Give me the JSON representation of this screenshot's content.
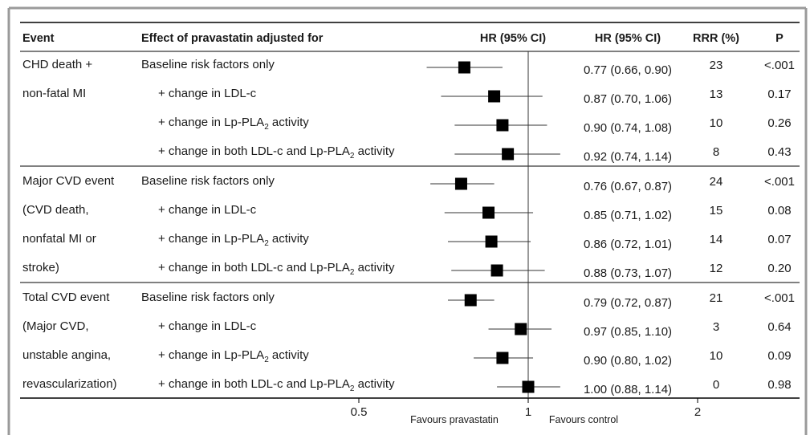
{
  "headers": {
    "event": "Event",
    "effect": "Effect of pravastatin adjusted for",
    "plot": "HR (95% CI)",
    "hr": "HR (95% CI)",
    "rrr": "RRR (%)",
    "p": "P"
  },
  "groups": [
    {
      "event_lines": [
        "CHD death +",
        "non-fatal MI"
      ],
      "rows": [
        {
          "label": "Baseline risk factors only",
          "indent": false,
          "hr_text": "0.77 (0.66, 0.90)",
          "rrr": "23",
          "p": "<.001"
        },
        {
          "label": "+ change in LDL-c",
          "indent": true,
          "hr_text": "0.87 (0.70, 1.06)",
          "rrr": "13",
          "p": "0.17"
        },
        {
          "label": "+ change in Lp-PLA",
          "sub": "2",
          "label_after": " activity",
          "indent": true,
          "hr_text": "0.90 (0.74, 1.08)",
          "rrr": "10",
          "p": "0.26"
        },
        {
          "label": "+ change in both LDL-c and Lp-PLA",
          "sub": "2",
          "label_after": " activity",
          "indent": true,
          "hr_text": "0.92 (0.74, 1.14)",
          "rrr": "8",
          "p": "0.43"
        }
      ]
    },
    {
      "event_lines": [
        "Major CVD event",
        "(CVD death,",
        "nonfatal MI or",
        "stroke)"
      ],
      "rows": [
        {
          "label": "Baseline risk factors only",
          "indent": false,
          "hr_text": "0.76 (0.67, 0.87)",
          "rrr": "24",
          "p": "<.001"
        },
        {
          "label": "+ change in LDL-c",
          "indent": true,
          "hr_text": "0.85 (0.71, 1.02)",
          "rrr": "15",
          "p": "0.08"
        },
        {
          "label": "+ change in Lp-PLA",
          "sub": "2",
          "label_after": " activity",
          "indent": true,
          "hr_text": "0.86 (0.72, 1.01)",
          "rrr": "14",
          "p": "0.07"
        },
        {
          "label": "+ change in both LDL-c and Lp-PLA",
          "sub": "2",
          "label_after": " activity",
          "indent": true,
          "hr_text": "0.88 (0.73, 1.07)",
          "rrr": "12",
          "p": "0.20"
        }
      ]
    },
    {
      "event_lines": [
        "Total CVD event",
        "(Major CVD,",
        "unstable angina,",
        "revascularization)"
      ],
      "rows": [
        {
          "label": "Baseline risk factors only",
          "indent": false,
          "hr_text": "0.79 (0.72, 0.87)",
          "rrr": "21",
          "p": "<.001"
        },
        {
          "label": "+ change in LDL-c",
          "indent": true,
          "hr_text": "0.97 (0.85, 1.10)",
          "rrr": "3",
          "p": "0.64"
        },
        {
          "label": "+ change in Lp-PLA",
          "sub": "2",
          "label_after": " activity",
          "indent": true,
          "hr_text": "0.90 (0.80, 1.02)",
          "rrr": "10",
          "p": "0.09"
        },
        {
          "label": "+ change in both LDL-c and Lp-PLA",
          "sub": "2",
          "label_after": " activity",
          "indent": true,
          "hr_text": "1.00 (0.88, 1.14)",
          "rrr": "0",
          "p": "0.98"
        }
      ]
    }
  ],
  "chart_data": {
    "type": "scatter",
    "subtype": "forest-plot",
    "xscale": "log",
    "xlim": [
      0.5,
      2
    ],
    "xticks": [
      "0.5",
      "1",
      "2"
    ],
    "reference_line": 1,
    "left_annotation": "Favours pravastatin",
    "right_annotation": "Favours control",
    "series": [
      {
        "points": [
          {
            "hr": 0.77,
            "lo": 0.66,
            "hi": 0.9
          },
          {
            "hr": 0.87,
            "lo": 0.7,
            "hi": 1.06
          },
          {
            "hr": 0.9,
            "lo": 0.74,
            "hi": 1.08
          },
          {
            "hr": 0.92,
            "lo": 0.74,
            "hi": 1.14
          },
          {
            "hr": 0.76,
            "lo": 0.67,
            "hi": 0.87
          },
          {
            "hr": 0.85,
            "lo": 0.71,
            "hi": 1.02
          },
          {
            "hr": 0.86,
            "lo": 0.72,
            "hi": 1.01
          },
          {
            "hr": 0.88,
            "lo": 0.73,
            "hi": 1.07
          },
          {
            "hr": 0.79,
            "lo": 0.72,
            "hi": 0.87
          },
          {
            "hr": 0.97,
            "lo": 0.85,
            "hi": 1.1
          },
          {
            "hr": 0.9,
            "lo": 0.8,
            "hi": 1.02
          },
          {
            "hr": 1.0,
            "lo": 0.88,
            "hi": 1.14
          }
        ]
      }
    ],
    "colors": {
      "marker": "#000000",
      "ci_line": "#333333",
      "rule": "#000000",
      "border": "#9a9a9a"
    }
  }
}
